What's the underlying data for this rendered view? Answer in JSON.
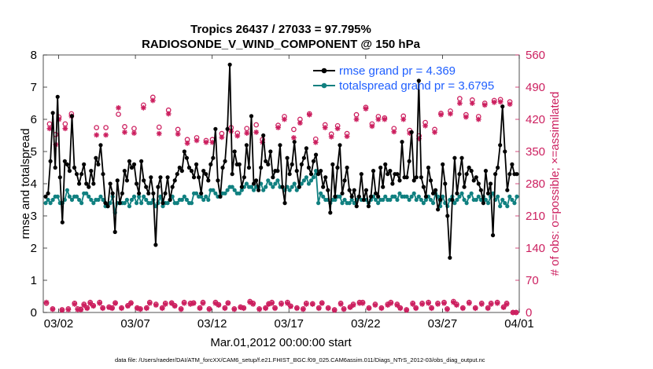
{
  "chart_data": {
    "type": "line",
    "title_line1": "Tropics 26437 / 27033 = 97.795%",
    "title_line2": "RADIOSONDE_V_WIND_COMPONENT @ 150 hPa",
    "xlabel": "Mar.01,2012 00:00:00 start",
    "ylabel_left": "rmse and totalspread",
    "ylabel_right": "# of obs: o=possible; ×=assimilated",
    "ylim_left": [
      0,
      8
    ],
    "ylim_right": [
      0,
      560
    ],
    "xlim_days": [
      0,
      31
    ],
    "yticks_left": [
      "0",
      "1",
      "2",
      "3",
      "4",
      "5",
      "6",
      "7",
      "8"
    ],
    "yticks_right": [
      "0",
      "70",
      "140",
      "210",
      "280",
      "350",
      "420",
      "490",
      "560"
    ],
    "xticks": [
      {
        "day": 1,
        "label": "03/02"
      },
      {
        "day": 6,
        "label": "03/07"
      },
      {
        "day": 11,
        "label": "03/12"
      },
      {
        "day": 16,
        "label": "03/17"
      },
      {
        "day": 21,
        "label": "03/22"
      },
      {
        "day": 26,
        "label": "03/27"
      },
      {
        "day": 31,
        "label": "04/01"
      }
    ],
    "series": [
      {
        "name": "rmse",
        "legend": "rmse grand pr = 4.369",
        "color": "#000000",
        "values": [
          3.6,
          3.7,
          4.7,
          6.2,
          4.5,
          6.7,
          4.2,
          2.8,
          4.7,
          4.6,
          4.4,
          6.1,
          4.5,
          4.3,
          4.0,
          4.3,
          4.6,
          4.0,
          3.9,
          4.4,
          4.0,
          4.8,
          4.6,
          5.2,
          4.3,
          3.4,
          3.3,
          4.0,
          3.7,
          2.5,
          4.1,
          3.4,
          3.7,
          4.4,
          4.1,
          4.7,
          4.5,
          4.6,
          4.0,
          3.7,
          4.7,
          4.1,
          3.9,
          3.7,
          4.2,
          3.7,
          2.1,
          3.9,
          4.2,
          3.4,
          3.7,
          4.2,
          3.5,
          3.9,
          4.1,
          4.3,
          4.5,
          4.4,
          5.0,
          4.8,
          4.5,
          4.4,
          4.2,
          4.6,
          4.2,
          3.7,
          4.4,
          4.3,
          4.1,
          4.6,
          4.8,
          5.7,
          4.1,
          3.6,
          4.5,
          4.7,
          5.7,
          7.7,
          4.3,
          5.0,
          4.6,
          4.6,
          3.9,
          4.2,
          5.2,
          4.5,
          6.1,
          4.0,
          4.1,
          3.8,
          4.5,
          5.5,
          4.7,
          4.6,
          5.0,
          4.2,
          4.4,
          4.4,
          5.2,
          3.9,
          3.4,
          4.8,
          4.3,
          4.6,
          5.3,
          4.4,
          3.9,
          4.6,
          4.8,
          5.1,
          4.5,
          4.3,
          4.7,
          4.9,
          4.3,
          4.4,
          3.9,
          4.2,
          3.8,
          3.1,
          4.6,
          3.6,
          4.5,
          5.2,
          3.7,
          4.1,
          4.5,
          3.8,
          3.6,
          3.8,
          3.3,
          3.6,
          4.3,
          3.5,
          3.8,
          3.3,
          3.6,
          4.4,
          3.7,
          3.6,
          4.5,
          3.9,
          4.6,
          4.3,
          4.4,
          4.0,
          4.3,
          4.3,
          4.1,
          5.3,
          4.2,
          4.2,
          4.7,
          5.6,
          4.1,
          4.2,
          7.2,
          4.2,
          3.9,
          3.6,
          4.5,
          4.1,
          3.7,
          3.8,
          3.2,
          3.5,
          4.6,
          4.0,
          3.0,
          1.7,
          3.5,
          4.8,
          3.7,
          4.3,
          4.8,
          3.9,
          4.3,
          4.5,
          4.4,
          4.1,
          4.2,
          4.0,
          3.8,
          3.4,
          4.4,
          3.7,
          4.0,
          2.4,
          4.3,
          4.5,
          5.2,
          6.4,
          5.0,
          3.8,
          4.3,
          4.6,
          4.3,
          4.3
        ]
      },
      {
        "name": "totalspread",
        "legend": "totalspread grand pr = 3.6795",
        "color": "#108080",
        "values": [
          3.4,
          3.5,
          3.4,
          3.5,
          3.6,
          3.6,
          3.4,
          3.4,
          3.5,
          3.8,
          3.6,
          3.5,
          3.6,
          3.6,
          3.5,
          3.4,
          3.7,
          3.7,
          3.6,
          3.5,
          3.4,
          3.5,
          3.5,
          3.6,
          3.5,
          3.3,
          3.3,
          3.4,
          3.6,
          3.1,
          3.4,
          3.4,
          3.4,
          3.4,
          3.5,
          3.3,
          3.5,
          3.6,
          3.4,
          3.6,
          3.4,
          3.6,
          3.5,
          3.4,
          3.4,
          3.5,
          3.3,
          3.4,
          3.6,
          3.3,
          3.4,
          3.4,
          3.5,
          3.6,
          3.4,
          3.4,
          3.5,
          3.5,
          3.6,
          3.5,
          3.4,
          3.4,
          3.7,
          3.7,
          3.6,
          3.6,
          3.5,
          3.6,
          3.5,
          3.8,
          3.8,
          3.7,
          3.6,
          3.6,
          3.7,
          3.7,
          3.8,
          3.9,
          3.9,
          3.8,
          3.7,
          3.7,
          3.8,
          3.9,
          4.0,
          3.9,
          3.9,
          3.8,
          3.9,
          3.9,
          4.0,
          3.8,
          3.9,
          4.1,
          4.0,
          3.9,
          4.0,
          4.1,
          3.9,
          3.9,
          3.8,
          3.9,
          3.8,
          3.9,
          4.0,
          3.8,
          3.9,
          4.0,
          4.1,
          4.2,
          4.0,
          4.1,
          4.2,
          4.4,
          3.4,
          3.7,
          3.6,
          3.5,
          3.5,
          3.4,
          3.5,
          3.5,
          3.6,
          3.6,
          3.4,
          3.5,
          3.4,
          3.4,
          3.5,
          3.4,
          3.5,
          3.6,
          3.5,
          3.5,
          3.5,
          3.4,
          3.5,
          3.6,
          3.5,
          3.4,
          3.5,
          3.5,
          3.6,
          3.5,
          3.5,
          3.6,
          3.6,
          3.5,
          3.7,
          3.6,
          3.6,
          3.6,
          3.5,
          3.6,
          3.7,
          3.5,
          3.6,
          3.5,
          3.4,
          3.5,
          3.6,
          3.5,
          3.4,
          3.7,
          3.6,
          3.3,
          3.6,
          3.4,
          3.3,
          3.5,
          3.6,
          3.4,
          3.5,
          3.6,
          3.7,
          3.5,
          3.4,
          3.6,
          3.7,
          3.5,
          3.5,
          3.6,
          3.5,
          3.6,
          3.5,
          3.4,
          3.6,
          3.7,
          3.5,
          3.6,
          3.3,
          3.5,
          3.4,
          3.3,
          3.6,
          3.5,
          3.4,
          3.6
        ]
      },
      {
        "name": "obs_possible",
        "legend": "",
        "marker": "o",
        "color": "#cc1f5f",
        "values": [
          20,
          410,
          8,
          387,
          425,
          6,
          410,
          8,
          432,
          20,
          8,
          7,
          18,
          10,
          22,
          15,
          402,
          22,
          10,
          402,
          12,
          10,
          21,
          431,
          10,
          404,
          15,
          21,
          400,
          10,
          8,
          451,
          10,
          22,
          468,
          18,
          403,
          10,
          20,
          440,
          21,
          15,
          398,
          8,
          22,
          376,
          20,
          21,
          380,
          10,
          22,
          374,
          8,
          376,
          22,
          17,
          389,
          10,
          21,
          402,
          8,
          390,
          12,
          10,
          400,
          24,
          20,
          408,
          8,
          376,
          10,
          19,
          22,
          10,
          407,
          20,
          426,
          22,
          14,
          398,
          10,
          420,
          8,
          20,
          432,
          19,
          377,
          10,
          21,
          408,
          10,
          388,
          6,
          406,
          20,
          8,
          389,
          12,
          18,
          430,
          22,
          22,
          446,
          10,
          410,
          18,
          426,
          10,
          423,
          18,
          22,
          400,
          18,
          10,
          427,
          6,
          396,
          20,
          10,
          384,
          20,
          413,
          22,
          10,
          398,
          20,
          433,
          22,
          8,
          438,
          24,
          18,
          465,
          10,
          430,
          22,
          462,
          10,
          426,
          20,
          455,
          10,
          20,
          461,
          22,
          463,
          12,
          20,
          458,
          0,
          0
        ]
      },
      {
        "name": "obs_assimilated",
        "legend": "",
        "marker": "x",
        "color": "#cc1f5f",
        "values": [
          22,
          400,
          7,
          365,
          420,
          5,
          400,
          6,
          427,
          18,
          6,
          6,
          16,
          9,
          20,
          14,
          386,
          20,
          9,
          386,
          11,
          9,
          20,
          445,
          9,
          392,
          14,
          20,
          390,
          9,
          7,
          445,
          9,
          20,
          461,
          16,
          389,
          9,
          18,
          432,
          20,
          14,
          388,
          7,
          20,
          368,
          18,
          20,
          374,
          9,
          20,
          370,
          7,
          370,
          20,
          16,
          381,
          9,
          20,
          394,
          7,
          384,
          11,
          9,
          390,
          22,
          18,
          392,
          7,
          370,
          9,
          18,
          20,
          9,
          402,
          18,
          420,
          20,
          13,
          380,
          9,
          412,
          7,
          18,
          430,
          18,
          370,
          9,
          20,
          402,
          9,
          382,
          5,
          400,
          18,
          7,
          383,
          11,
          16,
          420,
          20,
          20,
          443,
          9,
          405,
          16,
          420,
          9,
          420,
          16,
          20,
          393,
          16,
          9,
          420,
          5,
          390,
          18,
          9,
          378,
          18,
          406,
          20,
          9,
          392,
          18,
          430,
          20,
          7,
          432,
          22,
          16,
          455,
          9,
          425,
          20,
          455,
          9,
          420,
          18,
          451,
          9,
          18,
          457,
          20,
          458,
          11,
          18,
          453,
          0,
          0
        ]
      }
    ]
  },
  "footer": "data file: /Users/raeder/DAI/ATM_forcXX/CAM6_setup/f.e21.FHIST_BGC.f09_025.CAM6assim.011/Diags_NTrS_2012-03/obs_diag_output.nc"
}
